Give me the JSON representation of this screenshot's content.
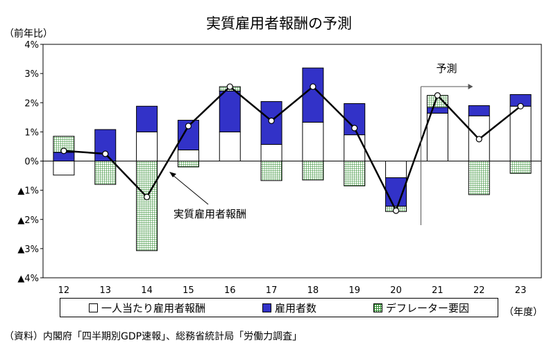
{
  "title": "実質雇用者報酬の予測",
  "y_unit": "（前年比）",
  "x_unit": "（年度）",
  "source": "（資料）内閣府「四半期別GDP速報」、総務省統計局「労働力調査」",
  "annotations": {
    "forecast": "予測",
    "line_label": "実質雇用者報酬"
  },
  "colors": {
    "employees": "#3232c8",
    "deflator": "#2e8b2e",
    "per_capita": "#ffffff"
  },
  "chart_data": {
    "type": "bar",
    "stacked": true,
    "title": "実質雇用者報酬の予測",
    "xlabel": "（年度）",
    "ylabel": "（前年比）",
    "categories": [
      "12",
      "13",
      "14",
      "15",
      "16",
      "17",
      "18",
      "19",
      "20",
      "21",
      "22",
      "23"
    ],
    "ylim": [
      -4,
      4
    ],
    "yticks": [
      "4%",
      "3%",
      "2%",
      "1%",
      "0%",
      "▲1%",
      "▲2%",
      "▲3%",
      "▲4%"
    ],
    "series": [
      {
        "name": "一人当たり雇用者報酬",
        "values": [
          -0.48,
          0.0,
          1.0,
          0.38,
          1.0,
          0.57,
          1.33,
          0.9,
          -0.57,
          1.64,
          1.55,
          1.88
        ]
      },
      {
        "name": "雇用者数",
        "values": [
          0.3,
          1.08,
          0.88,
          1.02,
          1.4,
          1.47,
          1.86,
          1.07,
          -0.98,
          0.2,
          0.35,
          0.4
        ]
      },
      {
        "name": "デフレーター要因",
        "values": [
          0.55,
          -0.8,
          -3.07,
          -0.2,
          0.15,
          -0.67,
          -0.65,
          -0.85,
          -0.18,
          0.41,
          -1.15,
          -0.42
        ]
      }
    ],
    "line": {
      "name": "実質雇用者報酬",
      "values": [
        0.35,
        0.25,
        -1.23,
        1.2,
        2.55,
        1.38,
        2.55,
        1.13,
        -1.7,
        2.25,
        0.75,
        1.88
      ]
    },
    "forecast_start": "21",
    "legend_position": "bottom",
    "grid": false
  }
}
